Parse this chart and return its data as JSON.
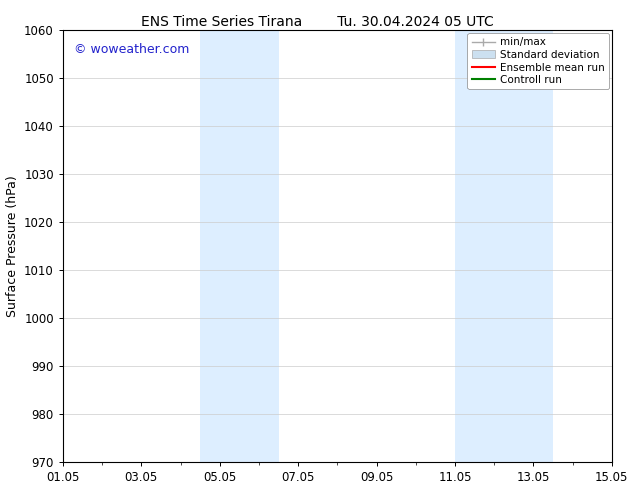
{
  "title_left": "ENS Time Series Tirana",
  "title_right": "Tu. 30.04.2024 05 UTC",
  "ylabel": "Surface Pressure (hPa)",
  "ylim": [
    970,
    1060
  ],
  "yticks": [
    970,
    980,
    990,
    1000,
    1010,
    1020,
    1030,
    1040,
    1050,
    1060
  ],
  "xlim": [
    0,
    14
  ],
  "xtick_labels": [
    "01.05",
    "03.05",
    "05.05",
    "07.05",
    "09.05",
    "11.05",
    "13.05",
    "15.05"
  ],
  "xtick_positions": [
    0,
    2,
    4,
    6,
    8,
    10,
    12,
    14
  ],
  "shaded_bands": [
    {
      "x_start": 3.5,
      "x_end": 5.5,
      "color": "#ddeeff"
    },
    {
      "x_start": 10.0,
      "x_end": 12.5,
      "color": "#ddeeff"
    }
  ],
  "watermark_text": "© woweather.com",
  "watermark_color": "#2222cc",
  "background_color": "#ffffff",
  "legend_entries": [
    {
      "label": "min/max",
      "color": "#aaaaaa",
      "lw": 1.0,
      "type": "errbar"
    },
    {
      "label": "Standard deviation",
      "color": "#cce0f0",
      "lw": 6,
      "type": "patch"
    },
    {
      "label": "Ensemble mean run",
      "color": "#ff0000",
      "lw": 1.5,
      "type": "line"
    },
    {
      "label": "Controll run",
      "color": "#008000",
      "lw": 1.5,
      "type": "line"
    }
  ],
  "title_fontsize": 10,
  "axis_fontsize": 9,
  "tick_fontsize": 8.5,
  "legend_fontsize": 7.5
}
